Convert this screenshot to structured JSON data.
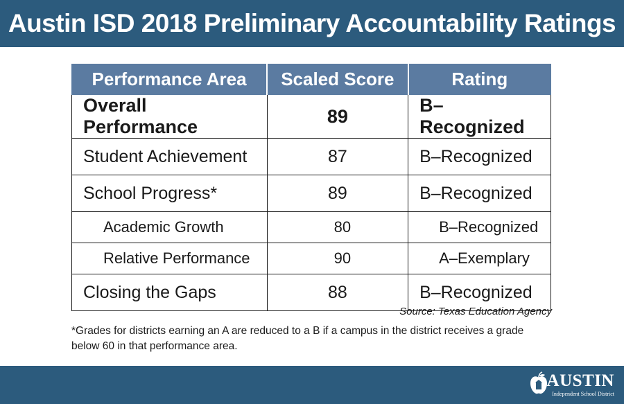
{
  "header": {
    "title": "Austin ISD 2018 Preliminary Accountability Ratings"
  },
  "table": {
    "columns": [
      "Performance Area",
      "Scaled Score",
      "Rating"
    ],
    "rows": [
      {
        "area": "Overall Performance",
        "score": "89",
        "rating": "B–Recognized"
      },
      {
        "area": "Student Achievement",
        "score": "87",
        "rating": "B–Recognized"
      },
      {
        "area": "School Progress*",
        "score": "89",
        "rating": "B–Recognized"
      },
      {
        "area": "Academic Growth",
        "score": "80",
        "rating": "B–Recognized"
      },
      {
        "area": "Relative Performance",
        "score": "90",
        "rating": "A–Exemplary"
      },
      {
        "area": "Closing the Gaps",
        "score": "88",
        "rating": "B–Recognized"
      }
    ]
  },
  "source": "Source: Texas Education Agency",
  "footnote": "*Grades for districts earning an A are reduced to a B if a campus in the district receives a grade below 60 in that performance area.",
  "logo": {
    "word": "AUSTIN",
    "subtitle": "Independent School District"
  },
  "colors": {
    "header_bg": "#2c5b7d",
    "table_header_bg": "#5b7ba1"
  }
}
